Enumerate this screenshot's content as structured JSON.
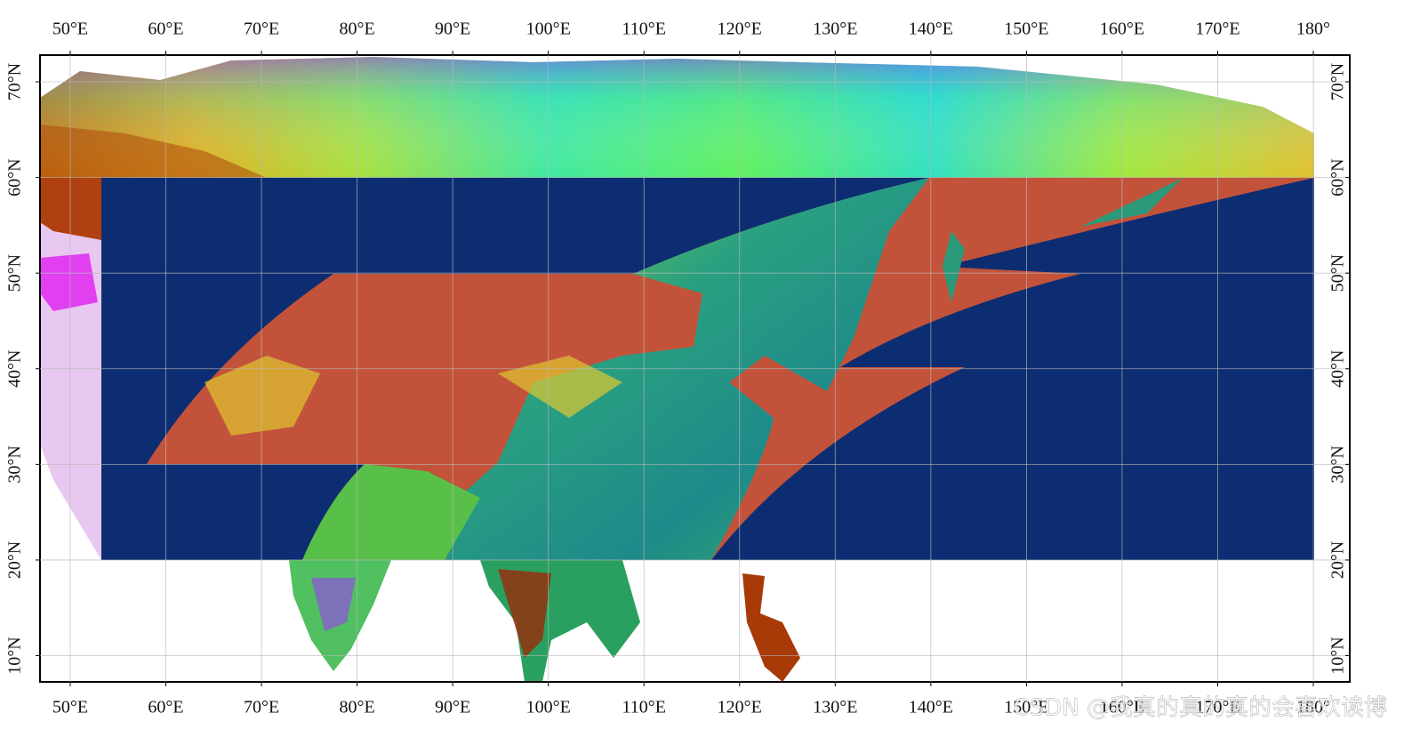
{
  "map": {
    "xlim": [
      46.84,
      183.81
    ],
    "ylim": [
      7.26,
      72.79
    ],
    "xticks": [
      {
        "value": 50,
        "label": "50°E"
      },
      {
        "value": 60,
        "label": "60°E"
      },
      {
        "value": 70,
        "label": "70°E"
      },
      {
        "value": 80,
        "label": "80°E"
      },
      {
        "value": 90,
        "label": "90°E"
      },
      {
        "value": 100,
        "label": "100°E"
      },
      {
        "value": 110,
        "label": "110°E"
      },
      {
        "value": 120,
        "label": "120°E"
      },
      {
        "value": 130,
        "label": "130°E"
      },
      {
        "value": 140,
        "label": "140°E"
      },
      {
        "value": 150,
        "label": "150°E"
      },
      {
        "value": 160,
        "label": "160°E"
      },
      {
        "value": 170,
        "label": "170°E"
      },
      {
        "value": 180,
        "label": "180°"
      }
    ],
    "yticks": [
      {
        "value": 10,
        "label": "10°N"
      },
      {
        "value": 20,
        "label": "20°N"
      },
      {
        "value": 30,
        "label": "30°N"
      },
      {
        "value": 40,
        "label": "40°N"
      },
      {
        "value": 50,
        "label": "50°N"
      },
      {
        "value": 60,
        "label": "60°N"
      },
      {
        "value": 70,
        "label": "70°N"
      }
    ],
    "watermark": "CSDN @我真的真的真的会喜欢读博"
  }
}
